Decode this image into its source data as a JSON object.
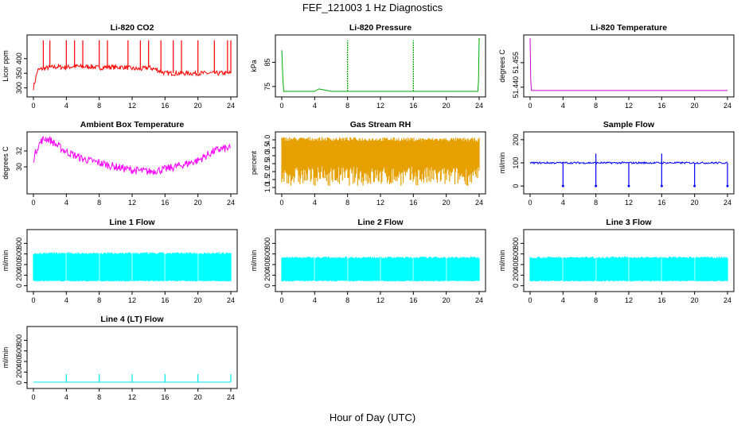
{
  "page_title": "FEF_121003  1 Hz Diagnostics",
  "x_axis_title": "Hour of Day (UTC)",
  "chart_data": [
    {
      "type": "line",
      "title": "Li-820 CO2",
      "ylabel": "Licor ppm",
      "color": "#ff0000",
      "xlim": [
        0,
        24
      ],
      "ylim": [
        280,
        470
      ],
      "xticks": [
        0,
        4,
        8,
        12,
        16,
        20,
        24
      ],
      "yticks": [
        300,
        350,
        400
      ],
      "series": [
        {
          "x": [
            0,
            0.5,
            1,
            2,
            3,
            4,
            5,
            6,
            7,
            8,
            9,
            10,
            11,
            12,
            13,
            14,
            15,
            16,
            17,
            18,
            19,
            20,
            21,
            22,
            23,
            24
          ],
          "y": [
            300,
            360,
            365,
            370,
            372,
            370,
            374,
            372,
            373,
            368,
            372,
            370,
            371,
            366,
            364,
            370,
            362,
            350,
            350,
            350,
            350,
            350,
            350,
            350,
            350,
            350
          ]
        }
      ],
      "spikes": [
        1.2,
        2,
        4,
        5,
        6,
        8,
        9,
        11.5,
        13,
        14,
        15.5,
        17,
        18,
        20,
        22,
        23.6,
        24
      ]
    },
    {
      "type": "line",
      "title": "Li-820 Pressure",
      "ylabel": "kPa",
      "color": "#00aa00",
      "xlim": [
        0,
        24
      ],
      "ylim": [
        72,
        95
      ],
      "xticks": [
        0,
        4,
        8,
        12,
        16,
        20,
        24
      ],
      "yticks": [
        75,
        85
      ],
      "series": [
        {
          "x": [
            0,
            0.2,
            0.4,
            2,
            4,
            4.5,
            6,
            8,
            10,
            12,
            16,
            20,
            23.9,
            24
          ],
          "y": [
            90,
            73,
            73,
            73,
            73,
            74,
            73,
            73,
            73,
            73,
            73,
            73,
            73,
            95
          ]
        }
      ],
      "spikes": [
        8,
        16,
        24
      ]
    },
    {
      "type": "line",
      "title": "Li-820 Temperature",
      "ylabel": "degrees C",
      "color": "#cc00cc",
      "xlim": [
        0,
        24
      ],
      "ylim": [
        51.436,
        51.47
      ],
      "xticks": [
        0,
        4,
        8,
        12,
        16,
        20,
        24
      ],
      "yticks": [
        51.44,
        51.455
      ],
      "series": [
        {
          "x": [
            0,
            0.1,
            0.5,
            24
          ],
          "y": [
            51.47,
            51.438,
            51.438,
            51.438
          ]
        }
      ]
    },
    {
      "type": "line",
      "title": "Ambient Box Temperature",
      "ylabel": "degrees C",
      "color": "#ff00ff",
      "xlim": [
        0,
        24
      ],
      "ylim": [
        27,
        34
      ],
      "xticks": [
        0,
        4,
        8,
        12,
        16,
        20,
        24
      ],
      "yticks": [
        30,
        32
      ],
      "series": [
        {
          "x": [
            0,
            0.5,
            1,
            1.5,
            2,
            3,
            4,
            6,
            8,
            10,
            12,
            14,
            16,
            18,
            20,
            21,
            22,
            23,
            24
          ],
          "y": [
            31,
            32.5,
            33.3,
            33.6,
            33.4,
            32.6,
            31.9,
            31.0,
            30.5,
            30.0,
            29.6,
            29.4,
            29.7,
            30.2,
            30.8,
            31.4,
            32.0,
            32.3,
            32.3
          ]
        }
      ],
      "band": 0.5
    },
    {
      "type": "area",
      "title": "Gas Stream RH",
      "ylabel": "percent",
      "color": "#e6a000",
      "xlim": [
        0,
        24
      ],
      "ylim": [
        0.8,
        4.3
      ],
      "xticks": [
        0,
        4,
        8,
        12,
        16,
        20,
        24
      ],
      "yticks": [
        1.0,
        1.5,
        2.0,
        2.5,
        3.0,
        3.5,
        4.0
      ],
      "series": [
        {
          "x": [
            0,
            24
          ],
          "y": [
            4.1,
            4.05
          ]
        }
      ],
      "band_low": 1.1
    },
    {
      "type": "line",
      "title": "Sample Flow",
      "ylabel": "ml/min",
      "color": "#0000ff",
      "xlim": [
        0,
        24
      ],
      "ylim": [
        -20,
        220
      ],
      "xticks": [
        0,
        4,
        8,
        12,
        16,
        20,
        24
      ],
      "yticks": [
        0,
        100,
        200
      ],
      "series": [
        {
          "x": [
            0,
            24
          ],
          "y": [
            100,
            100
          ]
        }
      ],
      "dips": [
        4,
        8,
        12,
        16,
        20,
        24
      ],
      "peaks": [
        8,
        16
      ]
    },
    {
      "type": "area",
      "title": "Line 1 Flow",
      "ylabel": "ml/min",
      "color": "#00ffff",
      "xlim": [
        0,
        24
      ],
      "ylim": [
        -50,
        1000
      ],
      "xticks": [
        0,
        4,
        8,
        12,
        16,
        20,
        24
      ],
      "yticks": [
        0,
        200,
        400,
        600,
        800
      ],
      "series": [
        {
          "x": [
            0,
            24
          ],
          "y": [
            620,
            620
          ]
        }
      ],
      "band_low": 80,
      "gaps": [
        4,
        8,
        12,
        16,
        20
      ]
    },
    {
      "type": "area",
      "title": "Line 2 Flow",
      "ylabel": "ml/min",
      "color": "#00ffff",
      "xlim": [
        0,
        24
      ],
      "ylim": [
        -50,
        1000
      ],
      "xticks": [
        0,
        4,
        8,
        12,
        16,
        20,
        24
      ],
      "yticks": [
        0,
        200,
        400,
        600,
        800
      ],
      "series": [
        {
          "x": [
            0,
            24
          ],
          "y": [
            540,
            540
          ]
        }
      ],
      "band_low": 80,
      "gaps": [
        4,
        8,
        12,
        16,
        20
      ]
    },
    {
      "type": "area",
      "title": "Line 3 Flow",
      "ylabel": "ml/min",
      "color": "#00ffff",
      "xlim": [
        0,
        24
      ],
      "ylim": [
        -50,
        1000
      ],
      "xticks": [
        0,
        4,
        8,
        12,
        16,
        20,
        24
      ],
      "yticks": [
        0,
        200,
        400,
        600,
        800
      ],
      "series": [
        {
          "x": [
            0,
            24
          ],
          "y": [
            540,
            540
          ]
        }
      ],
      "band_low": 80,
      "gaps": [
        4,
        8,
        12,
        16,
        20
      ]
    },
    {
      "type": "line",
      "title": "Line 4 (LT) Flow",
      "ylabel": "ml/min",
      "color": "#00e5e5",
      "xlim": [
        0,
        24
      ],
      "ylim": [
        -50,
        1000
      ],
      "xticks": [
        0,
        4,
        8,
        12,
        16,
        20,
        24
      ],
      "yticks": [
        0,
        200,
        400,
        600,
        800
      ],
      "series": [
        {
          "x": [
            0,
            24
          ],
          "y": [
            10,
            10
          ]
        }
      ],
      "spikes": [
        4,
        8,
        12,
        16,
        20,
        24
      ],
      "spike_height": 160
    }
  ]
}
